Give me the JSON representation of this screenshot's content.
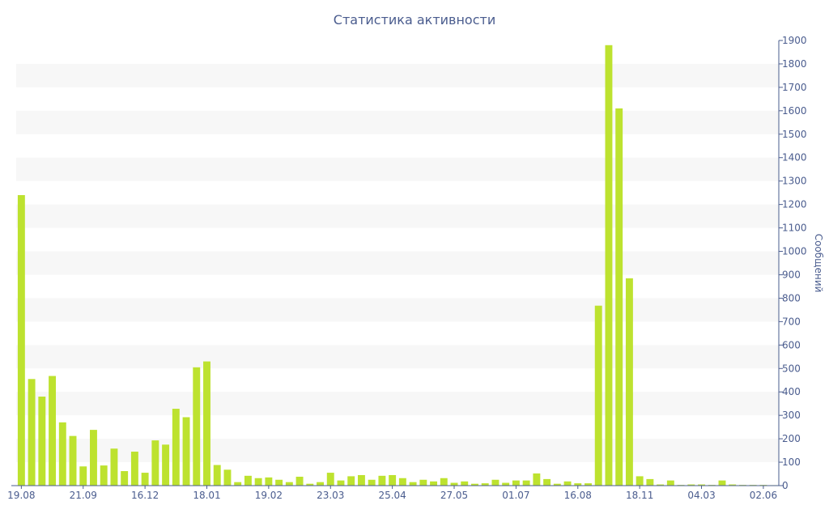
{
  "chart_data": {
    "type": "bar",
    "title": "Статистика активности",
    "xlabel": "",
    "ylabel": "Сообщений",
    "ylim": [
      0,
      1900
    ],
    "y_ticks": [
      0,
      100,
      200,
      300,
      400,
      500,
      600,
      700,
      800,
      900,
      1000,
      1100,
      1200,
      1300,
      1400,
      1500,
      1600,
      1700,
      1800,
      1900
    ],
    "y_axis_side": "right",
    "grid": "alternating horizontal bands",
    "legend": "none",
    "bar_color": "#bde22f",
    "band_color": "#f7f7f7",
    "text_color": "#4a5c8e",
    "x_tick_labels": [
      {
        "index": 0,
        "label": "19.08"
      },
      {
        "index": 6,
        "label": "21.09"
      },
      {
        "index": 12,
        "label": "16.12"
      },
      {
        "index": 18,
        "label": "18.01"
      },
      {
        "index": 24,
        "label": "19.02"
      },
      {
        "index": 30,
        "label": "23.03"
      },
      {
        "index": 36,
        "label": "25.04"
      },
      {
        "index": 42,
        "label": "27.05"
      },
      {
        "index": 48,
        "label": "01.07"
      },
      {
        "index": 54,
        "label": "16.08"
      },
      {
        "index": 60,
        "label": "18.11"
      },
      {
        "index": 66,
        "label": "04.03"
      },
      {
        "index": 72,
        "label": "02.06"
      }
    ],
    "values": [
      1240,
      455,
      380,
      468,
      270,
      212,
      82,
      238,
      86,
      158,
      62,
      145,
      55,
      193,
      175,
      328,
      292,
      505,
      530,
      88,
      68,
      15,
      42,
      32,
      35,
      25,
      15,
      38,
      8,
      15,
      55,
      22,
      40,
      45,
      25,
      42,
      45,
      32,
      15,
      25,
      18,
      32,
      12,
      18,
      8,
      10,
      25,
      12,
      22,
      22,
      52,
      28,
      8,
      18,
      10,
      10,
      768,
      1880,
      1610,
      885,
      40,
      28,
      5,
      22,
      3,
      5,
      5,
      3,
      22,
      5,
      3,
      3,
      3,
      2
    ]
  }
}
